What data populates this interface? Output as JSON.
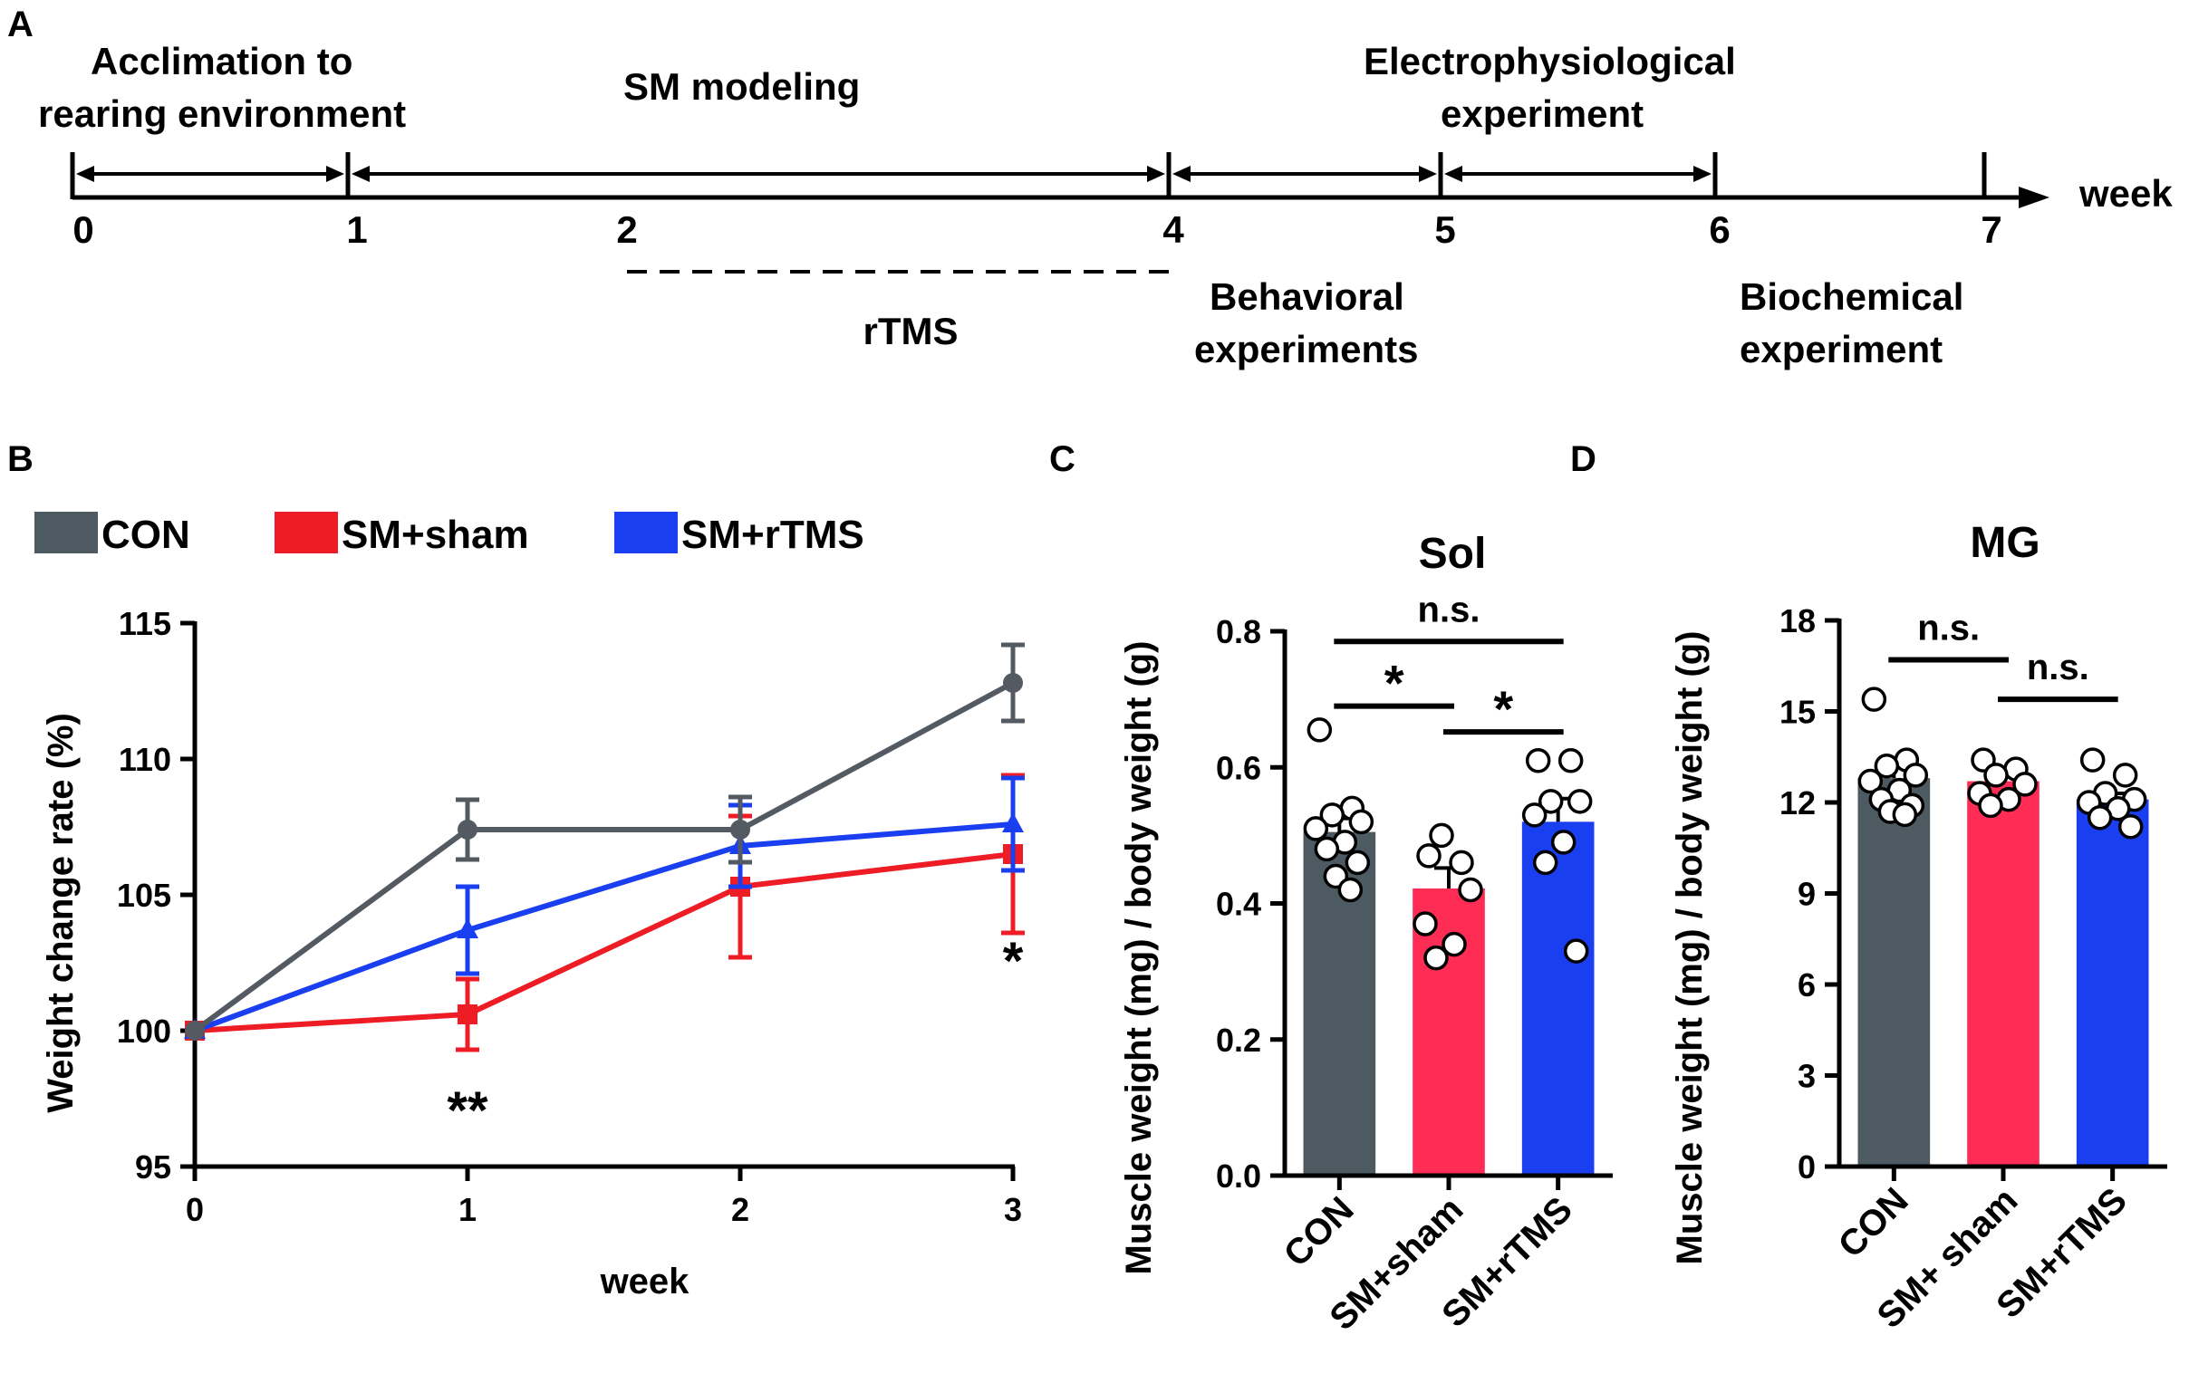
{
  "panel_labels": {
    "a": "A",
    "b": "B",
    "c": "C",
    "d": "D"
  },
  "colors": {
    "con": "#4d5a61",
    "sham": "#ee1c24",
    "rtms": "#1a3ff0",
    "sham_bar": "#ff2d55",
    "rtms_bar": "#1a3ff0",
    "axis": "#000000",
    "line_con": "#545a61"
  },
  "timeline": {
    "unit_label": "week",
    "weeks": [
      "0",
      "1",
      "2",
      "4",
      "5",
      "6",
      "7"
    ],
    "acclimation_l1": "Acclimation to",
    "acclimation_l2": "rearing environment",
    "sm_modeling": "SM modeling",
    "electro_l1": "Electrophysiological",
    "electro_l2": "experiment",
    "rtms": "rTMS",
    "behavioral_l1": "Behavioral",
    "behavioral_l2": "experiments",
    "biochem_l1": "Biochemical",
    "biochem_l2": "experiment"
  },
  "legend": {
    "con": "CON",
    "sham": "SM+sham",
    "rtms": "SM+rTMS"
  },
  "chart_data": [
    {
      "id": "B",
      "type": "line",
      "title": "",
      "xlabel": "week",
      "ylabel": "Weight change rate (%)",
      "x": [
        0,
        1,
        2,
        3
      ],
      "x_ticks": [
        "0",
        "1",
        "2",
        "3"
      ],
      "ylim": [
        95,
        115
      ],
      "y_ticks": [
        "95",
        "100",
        "105",
        "110",
        "115"
      ],
      "series": [
        {
          "name": "CON",
          "values": [
            100,
            107.4,
            107.4,
            112.8
          ],
          "errors": [
            0,
            1.1,
            1.2,
            1.4
          ]
        },
        {
          "name": "SM+sham",
          "values": [
            100,
            100.6,
            105.3,
            106.5
          ],
          "errors": [
            0,
            1.3,
            2.6,
            2.9
          ]
        },
        {
          "name": "SM+rTMS",
          "values": [
            100,
            103.7,
            106.8,
            107.6
          ],
          "errors": [
            0,
            1.6,
            1.5,
            1.7
          ]
        }
      ],
      "annotations": [
        {
          "text": "**",
          "x": 1,
          "y": 97.0
        },
        {
          "text": "*",
          "x": 3,
          "y": 102.5
        }
      ]
    },
    {
      "id": "C",
      "type": "bar",
      "title": "Sol",
      "ylabel": "Muscle weight (mg) / body weight (g)",
      "categories": [
        "CON",
        "SM+sham",
        "SM+rTMS"
      ],
      "values": [
        0.505,
        0.422,
        0.52
      ],
      "errors": [
        0.02,
        0.03,
        0.034
      ],
      "points": [
        [
          0.655,
          0.54,
          0.53,
          0.52,
          0.51,
          0.49,
          0.48,
          0.46,
          0.44,
          0.42
        ],
        [
          0.47,
          0.46,
          0.5,
          0.42,
          0.37,
          0.34,
          0.32
        ],
        [
          0.61,
          0.61,
          0.55,
          0.55,
          0.53,
          0.49,
          0.46,
          0.33
        ]
      ],
      "ylim": [
        0.0,
        0.8
      ],
      "y_ticks": [
        "0.0",
        "0.2",
        "0.4",
        "0.6",
        "0.8"
      ],
      "significance": [
        {
          "from": 0,
          "to": 2,
          "y": 0.785,
          "label": "n.s."
        },
        {
          "from": 0,
          "to": 1,
          "y": 0.69,
          "label": "*"
        },
        {
          "from": 1,
          "to": 2,
          "y": 0.652,
          "label": "*"
        }
      ]
    },
    {
      "id": "D",
      "type": "bar",
      "title": "MG",
      "ylabel": "Muscle weight (mg) / body weight (g)",
      "categories": [
        "CON",
        "SM+ sham",
        "SM+rTMS"
      ],
      "values": [
        12.8,
        12.7,
        12.1
      ],
      "errors": [
        0.35,
        0.25,
        0.2
      ],
      "points": [
        [
          15.4,
          13.4,
          13.2,
          12.9,
          12.7,
          12.4,
          12.1,
          11.9,
          11.7,
          11.6
        ],
        [
          13.4,
          13.1,
          12.9,
          12.6,
          12.3,
          12.1,
          11.9
        ],
        [
          13.4,
          12.9,
          12.3,
          12.1,
          12.0,
          11.8,
          11.5,
          11.2
        ]
      ],
      "ylim": [
        0,
        18
      ],
      "y_ticks": [
        "0",
        "3",
        "6",
        "9",
        "12",
        "15",
        "18"
      ],
      "significance": [
        {
          "from": 0,
          "to": 1,
          "y": 16.7,
          "label": "n.s."
        },
        {
          "from": 1,
          "to": 2,
          "y": 15.4,
          "label": "n.s."
        }
      ]
    }
  ]
}
